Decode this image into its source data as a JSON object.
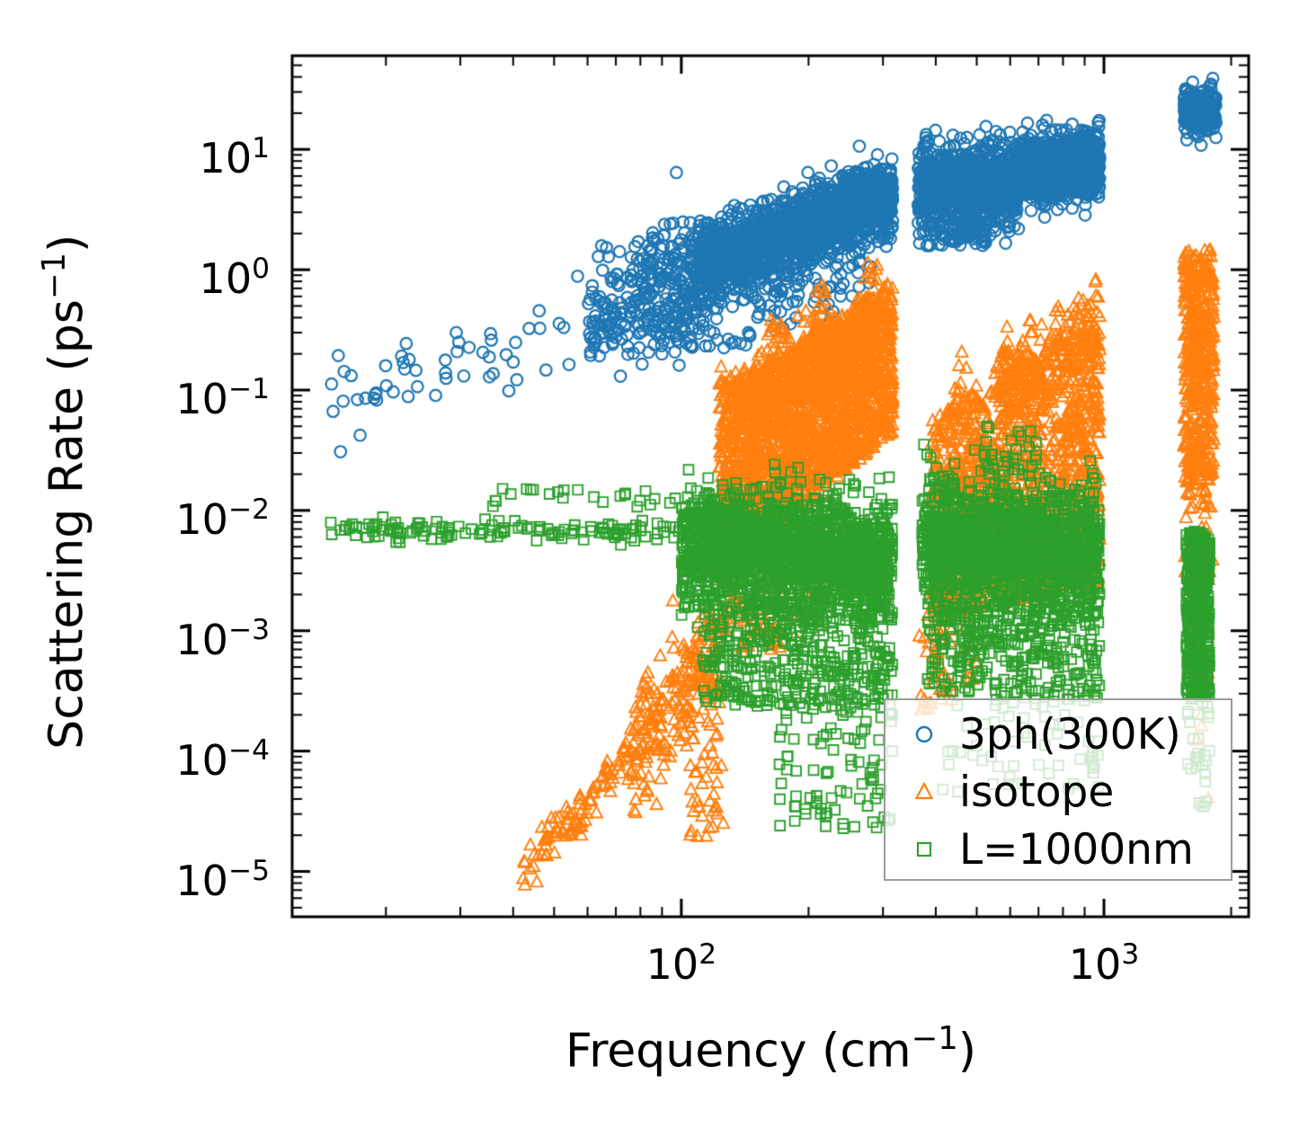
{
  "figure": {
    "background": "#ffffff"
  },
  "axes": {
    "ylabel": {
      "pre": "Scattering Rate (ps",
      "sup": "−1",
      "post": ")"
    },
    "xlabel": {
      "pre": "Frequency (cm",
      "sup": "−1",
      "post": ")"
    },
    "x_ticks": [
      {
        "base": "10",
        "exp": "2",
        "value": 100
      },
      {
        "base": "10",
        "exp": "3",
        "value": 1000
      }
    ],
    "y_ticks": [
      {
        "base": "10",
        "exp": "1",
        "value": 10
      },
      {
        "base": "10",
        "exp": "0",
        "value": 1
      },
      {
        "base": "10",
        "exp": "−1",
        "value": 0.1
      },
      {
        "base": "10",
        "exp": "−2",
        "value": 0.01
      },
      {
        "base": "10",
        "exp": "−3",
        "value": 0.001
      },
      {
        "base": "10",
        "exp": "−4",
        "value": 0.0001
      },
      {
        "base": "10",
        "exp": "−5",
        "value": 1e-05
      }
    ],
    "tick_color": "#000000",
    "spine_color": "#000000"
  },
  "legend": {
    "items": [
      {
        "label": "3ph(300K)",
        "marker": "circle",
        "color": "#1f77b4"
      },
      {
        "label": "isotope",
        "marker": "triangle",
        "color": "#ff7f0e"
      },
      {
        "label": "L=1000nm",
        "marker": "square",
        "color": "#2ca02c"
      }
    ]
  },
  "chart_data": {
    "type": "scatter",
    "title": "",
    "xlabel": "Frequency (cm⁻¹)",
    "ylabel": "Scattering Rate (ps⁻¹)",
    "xscale": "log",
    "yscale": "log",
    "xlim": [
      12,
      2200
    ],
    "ylim": [
      4.2e-06,
      60
    ],
    "grid": false,
    "legend_position": "lower right",
    "note": "Dense phonon-mode point clouds; each cluster gives count n, log10(x) range, and log10(y) law: k=n normal around linear center c with sd s, k=u uniform between linear envelopes lo..hi. Phonon band gap near 320-370 cm^-1; optical cluster at 1550-1830 cm^-1.",
    "series": [
      {
        "name": "3ph(300K)",
        "marker": "circle",
        "color": "#1f77b4",
        "clusters": [
          {
            "n": 55,
            "x": [
              1.17,
              1.8
            ],
            "y": {
              "k": "n",
              "c": [
                -1.08,
                -0.42
              ],
              "s": 0.2
            }
          },
          {
            "n": 240,
            "x": [
              1.78,
              2.05
            ],
            "y": {
              "k": "n",
              "c": [
                -0.4,
                -0.05
              ],
              "s": 0.24
            }
          },
          {
            "n": 90,
            "x": [
              1.92,
              2.06
            ],
            "y": {
              "k": "u",
              "lo": [
                -0.85,
                -0.85
              ],
              "hi": [
                0.42,
                0.42
              ]
            }
          },
          {
            "n": 1500,
            "x": [
              2.04,
              2.5
            ],
            "y": {
              "k": "n",
              "c": [
                0.02,
                0.58
              ],
              "s": 0.16
            }
          },
          {
            "n": 220,
            "x": [
              2.3,
              2.5
            ],
            "y": {
              "k": "n",
              "c": [
                0.45,
                0.72
              ],
              "s": 0.1
            }
          },
          {
            "n": 90,
            "x": [
              2.0,
              2.45
            ],
            "y": {
              "k": "u",
              "lo": [
                -0.78,
                -0.35
              ],
              "hi": [
                -0.25,
                0.1
              ]
            }
          },
          {
            "n": 850,
            "x": [
              2.56,
              2.8
            ],
            "y": {
              "k": "n",
              "c": [
                0.68,
                0.72
              ],
              "s": 0.17
            }
          },
          {
            "n": 70,
            "x": [
              2.58,
              2.72
            ],
            "y": {
              "k": "u",
              "lo": [
                0.2,
                0.2
              ],
              "hi": [
                0.45,
                0.45
              ]
            }
          },
          {
            "n": 850,
            "x": [
              2.8,
              2.99
            ],
            "y": {
              "k": "n",
              "c": [
                0.82,
                0.88
              ],
              "s": 0.13
            }
          },
          {
            "n": 330,
            "x": [
              3.19,
              3.265
            ],
            "y": {
              "k": "n",
              "c": [
                1.32,
                1.33
              ],
              "s": 0.09
            }
          }
        ]
      },
      {
        "name": "isotope",
        "marker": "triangle",
        "color": "#ff7f0e",
        "clusters": [
          {
            "n": 90,
            "x": [
              1.62,
              1.88
            ],
            "y": {
              "k": "n",
              "c": [
                -5.02,
                -4.0
              ],
              "s": 0.1
            }
          },
          {
            "n": 200,
            "x": [
              1.88,
              2.09
            ],
            "y": {
              "k": "n",
              "c": [
                -4.0,
                -3.1
              ],
              "s": 0.28
            }
          },
          {
            "n": 60,
            "x": [
              2.02,
              2.1
            ],
            "y": {
              "k": "u",
              "lo": [
                -4.75,
                -4.75
              ],
              "hi": [
                -3.1,
                -3.1
              ]
            }
          },
          {
            "n": 2000,
            "x": [
              2.09,
              2.5
            ],
            "y": {
              "k": "u",
              "lo": [
                -2.55,
                -1.35
              ],
              "hi": [
                -1.05,
                -0.15
              ],
              "jag": 0.45
            }
          },
          {
            "n": 260,
            "x": [
              2.13,
              2.5
            ],
            "y": {
              "k": "n",
              "c": [
                -1.15,
                -0.35
              ],
              "s": 0.18
            }
          },
          {
            "n": 120,
            "x": [
              2.1,
              2.35
            ],
            "y": {
              "k": "u",
              "lo": [
                -3.3,
                -3.0
              ],
              "hi": [
                -2.5,
                -1.9
              ]
            }
          },
          {
            "n": 1300,
            "x": [
              2.59,
              2.99
            ],
            "y": {
              "k": "u",
              "lo": [
                -2.9,
                -2.6
              ],
              "hi": [
                -1.25,
                -0.55
              ],
              "jag": 0.5
            }
          },
          {
            "n": 200,
            "x": [
              2.75,
              2.99
            ],
            "y": {
              "k": "n",
              "c": [
                -0.95,
                -0.5
              ],
              "s": 0.16
            }
          },
          {
            "n": 60,
            "x": [
              2.56,
              2.7
            ],
            "y": {
              "k": "u",
              "lo": [
                -3.7,
                -3.5
              ],
              "hi": [
                -2.9,
                -2.6
              ]
            }
          },
          {
            "n": 420,
            "x": [
              3.19,
              3.26
            ],
            "y": {
              "k": "u",
              "lo": [
                -1.75,
                -1.75
              ],
              "hi": [
                0.17,
                0.17
              ]
            }
          },
          {
            "n": 45,
            "x": [
              3.19,
              3.26
            ],
            "y": {
              "k": "u",
              "lo": [
                -2.6,
                -2.6
              ],
              "hi": [
                -1.75,
                -1.75
              ]
            }
          },
          {
            "n": 6,
            "x": [
              3.2,
              3.25
            ],
            "y": {
              "k": "u",
              "lo": [
                -4.4,
                -4.4
              ],
              "hi": [
                -3.3,
                -3.3
              ]
            }
          }
        ]
      },
      {
        "name": "L=1000nm",
        "marker": "square",
        "color": "#2ca02c",
        "clusters": [
          {
            "n": 130,
            "x": [
              1.17,
              2.0
            ],
            "y": {
              "k": "n",
              "c": [
                -2.17,
                -2.17
              ],
              "s": 0.05
            }
          },
          {
            "n": 25,
            "x": [
              1.55,
              2.0
            ],
            "y": {
              "k": "u",
              "lo": [
                -1.97,
                -1.97
              ],
              "hi": [
                -1.8,
                -1.8
              ]
            }
          },
          {
            "n": 1700,
            "x": [
              2.0,
              2.5
            ],
            "y": {
              "k": "n",
              "c": [
                -2.28,
                -2.42
              ],
              "s": 0.24
            }
          },
          {
            "n": 420,
            "x": [
              2.05,
              2.5
            ],
            "y": {
              "k": "u",
              "lo": [
                -3.6,
                -3.7
              ],
              "hi": [
                -2.7,
                -2.7
              ]
            }
          },
          {
            "n": 80,
            "x": [
              2.22,
              2.5
            ],
            "y": {
              "k": "u",
              "lo": [
                -4.65,
                -4.65
              ],
              "hi": [
                -3.6,
                -3.6
              ]
            }
          },
          {
            "n": 1400,
            "x": [
              2.57,
              2.99
            ],
            "y": {
              "k": "n",
              "c": [
                -2.25,
                -2.35
              ],
              "s": 0.26
            }
          },
          {
            "n": 25,
            "x": [
              2.7,
              2.84
            ],
            "y": {
              "k": "u",
              "lo": [
                -1.68,
                -1.68
              ],
              "hi": [
                -1.3,
                -1.3
              ]
            }
          },
          {
            "n": 330,
            "x": [
              2.58,
              2.99
            ],
            "y": {
              "k": "u",
              "lo": [
                -3.5,
                -3.6
              ],
              "hi": [
                -2.7,
                -2.7
              ]
            }
          },
          {
            "n": 60,
            "x": [
              2.6,
              2.99
            ],
            "y": {
              "k": "u",
              "lo": [
                -4.35,
                -4.35
              ],
              "hi": [
                -3.5,
                -3.5
              ]
            }
          },
          {
            "n": 400,
            "x": [
              3.195,
              3.25
            ],
            "y": {
              "k": "u",
              "lo": [
                -3.55,
                -3.55
              ],
              "hi": [
                -2.17,
                -2.17
              ]
            }
          },
          {
            "n": 28,
            "x": [
              3.195,
              3.25
            ],
            "y": {
              "k": "u",
              "lo": [
                -4.5,
                -4.5
              ],
              "hi": [
                -3.55,
                -3.55
              ]
            }
          }
        ]
      }
    ]
  }
}
